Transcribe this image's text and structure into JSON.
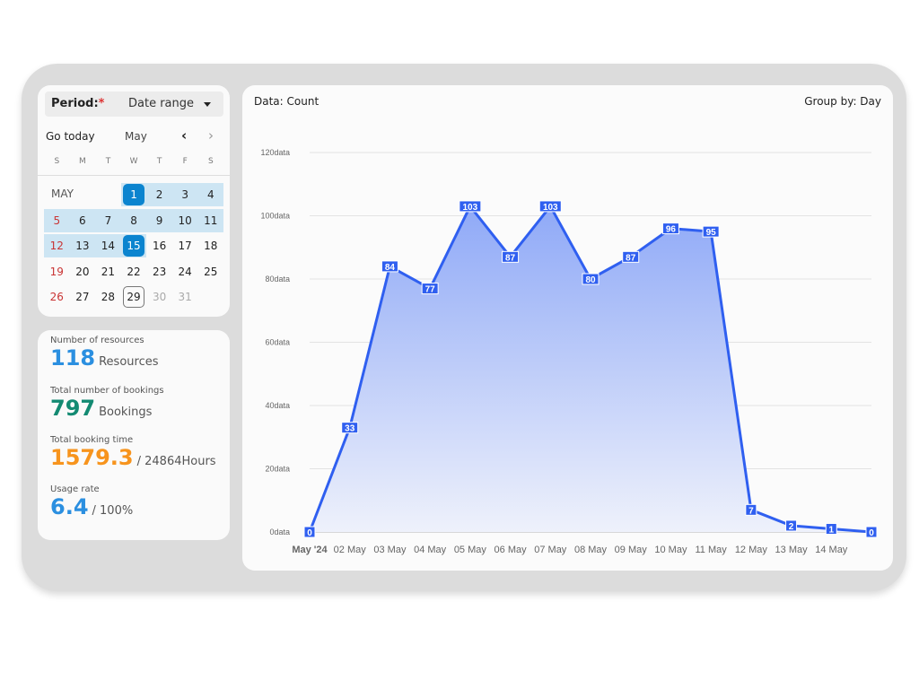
{
  "period": {
    "label": "Period:",
    "required_mark": "*",
    "value": "Date range"
  },
  "calendar": {
    "go_today": "Go today",
    "month": "May",
    "month_label": "MAY",
    "prev_icon": "chevron-left",
    "next_icon": "chevron-right",
    "weekdays": [
      "S",
      "M",
      "T",
      "W",
      "T",
      "F",
      "S"
    ],
    "weeks": [
      [
        null,
        null,
        null,
        1,
        2,
        3,
        4
      ],
      [
        5,
        6,
        7,
        8,
        9,
        10,
        11
      ],
      [
        12,
        13,
        14,
        15,
        16,
        17,
        18
      ],
      [
        19,
        20,
        21,
        22,
        23,
        24,
        25
      ],
      [
        26,
        27,
        28,
        29,
        30,
        31,
        null
      ]
    ],
    "range_start": 1,
    "range_end": 15,
    "today": 29,
    "disabled_after": 29
  },
  "stats": [
    {
      "title": "Number of resources",
      "value": "118",
      "unit": "Resources",
      "color": "#2b8fe0"
    },
    {
      "title": "Total number of bookings",
      "value": "797",
      "unit": "Bookings",
      "color": "#138a72"
    },
    {
      "title": "Total booking time",
      "value": "1579.3",
      "unit": "/ 24864Hours",
      "color": "#f7941d"
    },
    {
      "title": "Usage rate",
      "value": "6.4",
      "unit": "/ 100%",
      "color": "#2b8fe0"
    }
  ],
  "chart_header": {
    "data": "Data: Count",
    "group_by": "Group by: Day"
  },
  "chart_data": {
    "type": "area",
    "x": [
      "May '24",
      "02 May",
      "03 May",
      "04 May",
      "05 May",
      "06 May",
      "07 May",
      "08 May",
      "09 May",
      "10 May",
      "11 May",
      "12 May",
      "13 May",
      "14 May",
      ""
    ],
    "values": [
      0,
      33,
      84,
      77,
      103,
      87,
      103,
      80,
      87,
      96,
      95,
      7,
      2,
      1,
      0
    ],
    "yticks": [
      "0data",
      "20data",
      "40data",
      "60data",
      "80data",
      "100data",
      "120data"
    ],
    "ylim": [
      0,
      120
    ],
    "grid": true,
    "color": "#2f5ff0"
  }
}
